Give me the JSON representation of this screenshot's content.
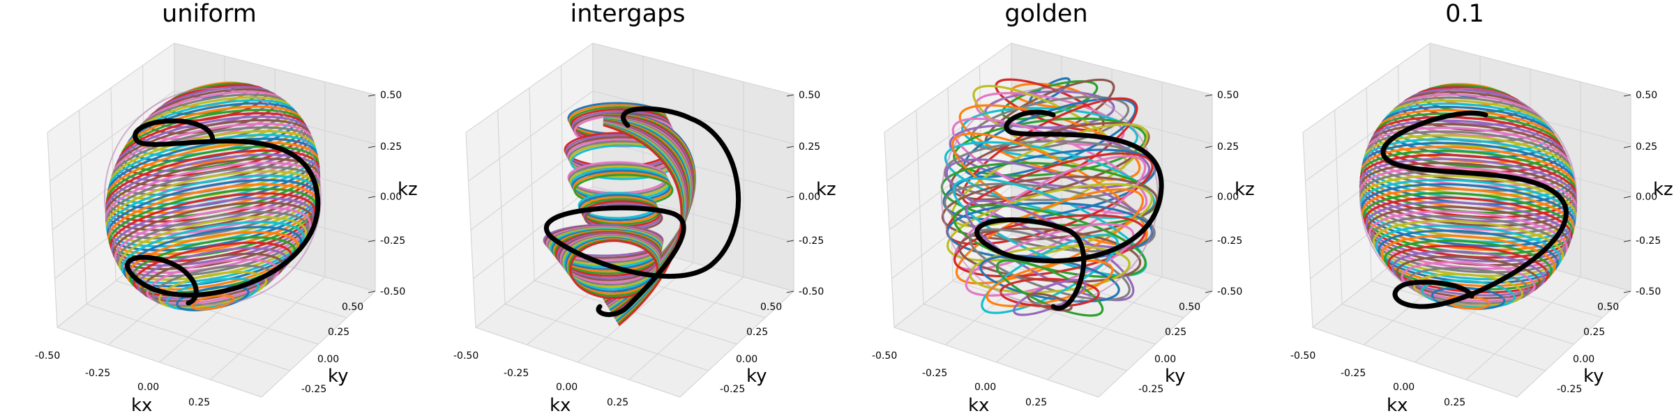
{
  "chart_data": [
    {
      "type": "line",
      "projection": "3d",
      "title": "uniform",
      "xlabel": "kx",
      "ylabel": "ky",
      "zlabel": "kz",
      "xlim": [
        -0.5,
        0.5
      ],
      "ylim": [
        -0.5,
        0.5
      ],
      "zlim": [
        -0.5,
        0.5
      ],
      "x_ticks": [
        "-0.50",
        "-0.25",
        "0.00",
        "0.25"
      ],
      "y_ticks": [
        "-0.25",
        "0.00",
        "0.25",
        "0.50"
      ],
      "z_ticks": [
        "-0.50",
        "-0.25",
        "0.00",
        "0.25",
        "0.50"
      ],
      "grid": true,
      "description_of_traces": "many colored spiral trajectories on a sphere of radius 0.5; one highlighted black spiral",
      "highlight_color": "#000000",
      "trajectory_style": "uniform",
      "tilt": -0.35,
      "turns": 1.1
    },
    {
      "type": "line",
      "projection": "3d",
      "title": "intergaps",
      "xlabel": "kx",
      "ylabel": "ky",
      "zlabel": "kz",
      "xlim": [
        -0.5,
        0.5
      ],
      "ylim": [
        -0.5,
        0.5
      ],
      "zlim": [
        -0.5,
        0.5
      ],
      "x_ticks": [
        "-0.50",
        "-0.25",
        "0.00",
        "0.25"
      ],
      "y_ticks": [
        "-0.25",
        "0.00",
        "0.25",
        "0.50"
      ],
      "z_ticks": [
        "-0.50",
        "-0.25",
        "0.00",
        "0.25",
        "0.50"
      ],
      "grid": true,
      "highlight_color": "#000000",
      "trajectory_style": "intergaps",
      "tilt": 0.0,
      "turns": 1.3
    },
    {
      "type": "line",
      "projection": "3d",
      "title": "golden",
      "xlabel": "kx",
      "ylabel": "ky",
      "zlabel": "kz",
      "xlim": [
        -0.5,
        0.5
      ],
      "ylim": [
        -0.5,
        0.5
      ],
      "zlim": [
        -0.5,
        0.5
      ],
      "x_ticks": [
        "-0.50",
        "-0.25",
        "0.00",
        "0.25"
      ],
      "y_ticks": [
        "-0.25",
        "0.00",
        "0.25",
        "0.50"
      ],
      "z_ticks": [
        "-0.50",
        "-0.25",
        "0.00",
        "0.25",
        "0.50"
      ],
      "grid": true,
      "highlight_color": "#000000",
      "trajectory_style": "golden",
      "tilt": -0.25,
      "turns": 1.2
    },
    {
      "type": "line",
      "projection": "3d",
      "title": "0.1",
      "xlabel": "kx",
      "ylabel": "ky",
      "zlabel": "kz",
      "xlim": [
        -0.5,
        0.5
      ],
      "ylim": [
        -0.5,
        0.5
      ],
      "zlim": [
        -0.5,
        0.5
      ],
      "x_ticks": [
        "-0.50",
        "-0.25",
        "0.00",
        "0.25"
      ],
      "y_ticks": [
        "-0.25",
        "0.00",
        "0.25",
        "0.50"
      ],
      "z_ticks": [
        "-0.50",
        "-0.25",
        "0.00",
        "0.25",
        "0.50"
      ],
      "grid": true,
      "highlight_color": "#000000",
      "trajectory_style": "uniform",
      "tilt": 0.15,
      "turns": 1.1
    }
  ],
  "colors": {
    "background": "#ffffff",
    "pane_left": "#f2f2f2",
    "pane_right": "#e6e6e6",
    "pane_floor": "#eeeeee",
    "grid": "#d6d6d6",
    "palette": [
      "#1f77b4",
      "#ff7f0e",
      "#2ca02c",
      "#d62728",
      "#9467bd",
      "#8c564b",
      "#e377c2",
      "#7f7f7f",
      "#bcbd22",
      "#17becf"
    ]
  }
}
